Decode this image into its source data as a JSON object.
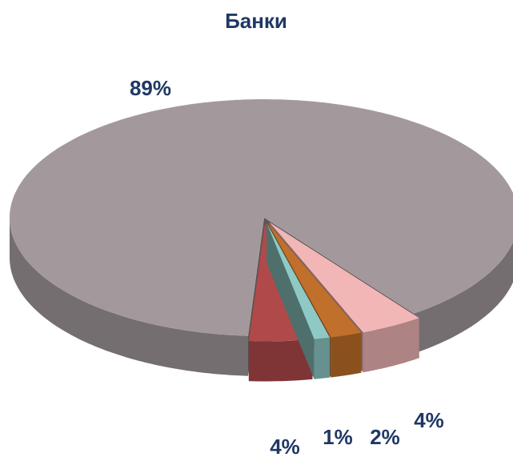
{
  "chart_data": {
    "type": "pie",
    "title": "Банки",
    "values": [
      4,
      2,
      1,
      4,
      89
    ],
    "value_labels": [
      "4%",
      "2%",
      "1%",
      "4%",
      "89%"
    ],
    "colors": [
      "#f2b6b6",
      "#c0702a",
      "#8ec9c5",
      "#b04a4a",
      "#a3999c"
    ]
  }
}
